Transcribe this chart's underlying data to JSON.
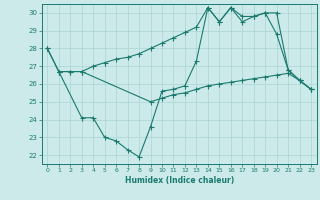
{
  "xlabel": "Humidex (Indice chaleur)",
  "bg_color": "#cceaea",
  "line_color": "#1a7a6e",
  "grid_color": "#aad4d4",
  "xlim": [
    -0.5,
    23.5
  ],
  "ylim": [
    21.5,
    30.5
  ],
  "xticks": [
    0,
    1,
    2,
    3,
    4,
    5,
    6,
    7,
    8,
    9,
    10,
    11,
    12,
    13,
    14,
    15,
    16,
    17,
    18,
    19,
    20,
    21,
    22,
    23
  ],
  "yticks": [
    22,
    23,
    24,
    25,
    26,
    27,
    28,
    29,
    30
  ],
  "line1_x": [
    0,
    1,
    2,
    3,
    4,
    5,
    6,
    7,
    8,
    9,
    10,
    11,
    12,
    13,
    14,
    15,
    16,
    17,
    18,
    19,
    20,
    21,
    22,
    23
  ],
  "line1_y": [
    28,
    26.7,
    26.7,
    26.7,
    27.0,
    27.2,
    27.4,
    27.5,
    27.7,
    28.0,
    28.3,
    28.6,
    28.9,
    29.2,
    30.3,
    29.5,
    30.3,
    29.8,
    29.8,
    30.0,
    28.8,
    26.8,
    26.2,
    25.7
  ],
  "line2_x": [
    0,
    1,
    2,
    3,
    9,
    10,
    11,
    12,
    13,
    14,
    15,
    16,
    17,
    18,
    19,
    20,
    21,
    22,
    23
  ],
  "line2_y": [
    28,
    26.7,
    26.7,
    26.7,
    25.0,
    25.2,
    25.4,
    25.5,
    25.7,
    25.9,
    26.0,
    26.1,
    26.2,
    26.3,
    26.4,
    26.5,
    26.6,
    26.2,
    25.7
  ],
  "line3_x": [
    1,
    3,
    4,
    5,
    6,
    7,
    8,
    9,
    10,
    11,
    12,
    13,
    14,
    15,
    16,
    17,
    18,
    19,
    20,
    21,
    22,
    23
  ],
  "line3_y": [
    26.7,
    24.1,
    24.1,
    23.0,
    22.8,
    22.3,
    21.9,
    23.6,
    25.6,
    25.7,
    25.9,
    27.3,
    30.3,
    29.5,
    30.3,
    29.5,
    29.8,
    30.0,
    30.0,
    26.8,
    26.2,
    25.7
  ]
}
